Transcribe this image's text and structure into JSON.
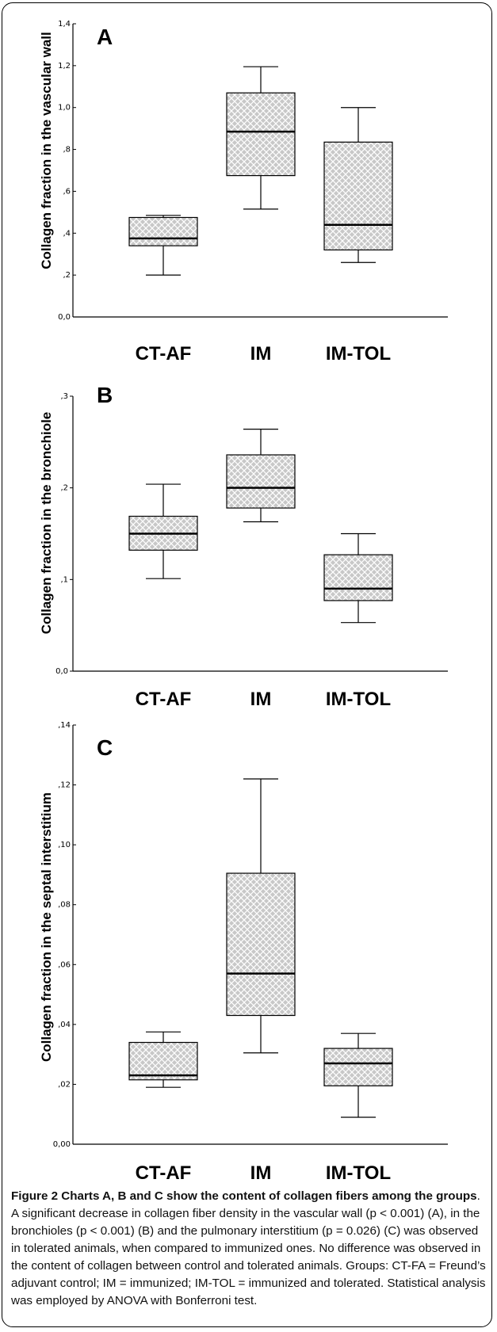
{
  "chart_data": [
    {
      "type": "box",
      "panel_label": "A",
      "ylabel": "Collagen fraction in the vascular wall",
      "ylim": [
        0,
        1.4
      ],
      "yticks": [
        0,
        0.2,
        0.4,
        0.6,
        0.8,
        1.0,
        1.2,
        1.4
      ],
      "ytick_labels": [
        "0,0",
        ",2",
        ",4",
        ",6",
        ",8",
        "1,0",
        "1,2",
        "1,4"
      ],
      "categories": [
        "CT-AF",
        "IM",
        "IM-TOL"
      ],
      "boxes": [
        {
          "min": 0.2,
          "q1": 0.34,
          "median": 0.375,
          "q3": 0.475,
          "max": 0.485
        },
        {
          "min": 0.515,
          "q1": 0.675,
          "median": 0.885,
          "q3": 1.07,
          "max": 1.195
        },
        {
          "min": 0.26,
          "q1": 0.32,
          "median": 0.44,
          "q3": 0.835,
          "max": 1.0
        }
      ]
    },
    {
      "type": "box",
      "panel_label": "B",
      "ylabel": "Collagen fraction in the bronchiole",
      "ylim": [
        0,
        0.3
      ],
      "yticks": [
        0,
        0.1,
        0.2,
        0.3
      ],
      "ytick_labels": [
        "0,0",
        ",1",
        ",2",
        ",3"
      ],
      "categories": [
        "CT-AF",
        "IM",
        "IM-TOL"
      ],
      "boxes": [
        {
          "min": 0.101,
          "q1": 0.132,
          "median": 0.15,
          "q3": 0.169,
          "max": 0.204
        },
        {
          "min": 0.163,
          "q1": 0.178,
          "median": 0.2,
          "q3": 0.236,
          "max": 0.264
        },
        {
          "min": 0.053,
          "q1": 0.077,
          "median": 0.09,
          "q3": 0.127,
          "max": 0.15
        }
      ]
    },
    {
      "type": "box",
      "panel_label": "C",
      "ylabel": "Collagen fraction in the septal interstitium",
      "ylim": [
        0,
        0.14
      ],
      "yticks": [
        0,
        0.02,
        0.04,
        0.06,
        0.08,
        0.1,
        0.12,
        0.14
      ],
      "ytick_labels": [
        "0,00",
        ",02",
        ",04",
        ",06",
        ",08",
        ",10",
        ",12",
        ",14"
      ],
      "categories": [
        "CT-AF",
        "IM",
        "IM-TOL"
      ],
      "boxes": [
        {
          "min": 0.019,
          "q1": 0.0215,
          "median": 0.023,
          "q3": 0.034,
          "max": 0.0375
        },
        {
          "min": 0.0305,
          "q1": 0.043,
          "median": 0.057,
          "q3": 0.0905,
          "max": 0.122
        },
        {
          "min": 0.009,
          "q1": 0.0195,
          "median": 0.027,
          "q3": 0.032,
          "max": 0.037
        }
      ]
    }
  ],
  "style": {
    "box_fill": "#c8c8c8",
    "hatch_color": "#ffffff",
    "line_color": "#000000"
  },
  "caption": {
    "title": "Figure 2  Charts A, B and C show the content of collagen fibers among the groups",
    "text": ". A significant decrease in collagen fiber density in the vascular wall (p < 0.001) (A), in the bronchioles (p < 0.001) (B) and the pulmonary interstitium (p = 0.026) (C) was observed in tolerated animals, when compared to immunized ones. No difference was observed in the content of collagen between control and tolerated animals. Groups: CT-FA = Freund’s adjuvant control; IM = immunized; IM-TOL = immunized and tolerated. Statistical analysis was employed by ANOVA with Bonferroni test."
  }
}
